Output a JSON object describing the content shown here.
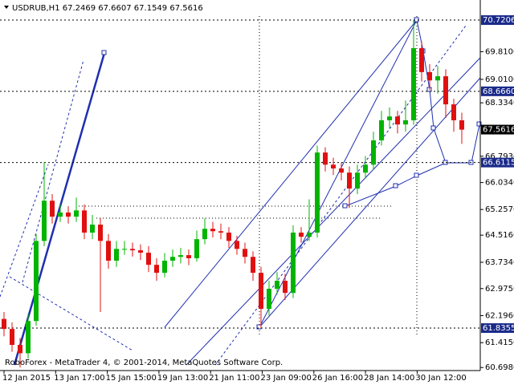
{
  "chart_data": {
    "type": "candlestick",
    "title": "USDRUB,H1  67.2469 67.6607 67.1549 67.5616",
    "footer": "RoboForex - MetaTrader 4, © 2001-2014, MetaQuotes Software Corp.",
    "x_labels": [
      "12 Jan 2015",
      "13 Jan 17:00",
      "15 Jan 15:00",
      "19 Jan 13:00",
      "21 Jan 11:00",
      "23 Jan 09:00",
      "26 Jan 16:00",
      "28 Jan 14:00",
      "30 Jan 12:00"
    ],
    "open": [
      62.1,
      61.81,
      61.35,
      61.11,
      62.04,
      64.35,
      65.51,
      65.05,
      65.17,
      65.05,
      65.23,
      64.59,
      64.82,
      64.35,
      63.78,
      64.12,
      64.12,
      64.08,
      64.01,
      63.66,
      63.43,
      63.78,
      63.89,
      63.94,
      63.85,
      64.4,
      64.7,
      64.63,
      64.59,
      64.35,
      64.12,
      63.89,
      63.43,
      62.39,
      62.97,
      63.2,
      62.85,
      64.59,
      64.47,
      64.59,
      66.9,
      66.55,
      66.44,
      66.32,
      65.86,
      66.32,
      66.55,
      67.25,
      67.83,
      67.94,
      67.71,
      67.83,
      69.91,
      69.22,
      68.98,
      69.1,
      68.29,
      67.83
    ],
    "high": [
      62.3,
      62.0,
      61.55,
      62.25,
      64.55,
      66.62,
      65.7,
      65.4,
      65.35,
      65.6,
      65.4,
      65.1,
      65.0,
      64.55,
      64.35,
      64.35,
      64.3,
      64.25,
      64.2,
      63.85,
      64.0,
      64.1,
      64.15,
      64.1,
      64.65,
      65.0,
      64.9,
      64.85,
      64.75,
      64.5,
      64.3,
      64.05,
      63.6,
      63.2,
      63.45,
      63.4,
      64.8,
      64.75,
      65.55,
      67.1,
      67.05,
      66.75,
      66.6,
      66.5,
      66.55,
      66.8,
      67.5,
      68.1,
      68.2,
      68.1,
      68.4,
      70.72,
      70.1,
      69.45,
      69.4,
      69.3,
      68.45,
      68.05
    ],
    "low": [
      61.6,
      61.15,
      60.7,
      60.95,
      61.9,
      64.2,
      64.85,
      64.9,
      64.85,
      64.9,
      64.4,
      64.4,
      62.3,
      63.55,
      63.6,
      63.95,
      63.9,
      63.8,
      63.45,
      63.2,
      63.3,
      63.6,
      63.7,
      63.65,
      63.75,
      64.25,
      64.45,
      64.4,
      64.15,
      63.95,
      63.7,
      63.2,
      61.84,
      62.2,
      62.8,
      62.65,
      62.7,
      64.3,
      64.35,
      64.45,
      66.35,
      66.25,
      66.1,
      65.3,
      65.7,
      66.15,
      66.4,
      67.1,
      67.6,
      67.45,
      67.5,
      67.7,
      68.95,
      68.7,
      68.6,
      67.9,
      67.5,
      67.15
    ],
    "close": [
      61.81,
      61.35,
      61.11,
      62.04,
      64.35,
      65.51,
      65.05,
      65.17,
      65.05,
      65.23,
      64.59,
      64.82,
      64.35,
      63.78,
      64.12,
      64.12,
      64.08,
      64.01,
      63.66,
      63.43,
      63.78,
      63.89,
      63.94,
      63.85,
      64.4,
      64.7,
      64.63,
      64.59,
      64.35,
      64.12,
      63.89,
      63.43,
      62.39,
      62.97,
      63.2,
      62.85,
      64.59,
      64.47,
      64.59,
      66.9,
      66.55,
      66.44,
      66.32,
      65.86,
      66.32,
      66.55,
      67.25,
      67.83,
      67.94,
      67.71,
      67.83,
      69.91,
      69.22,
      68.98,
      69.1,
      68.29,
      67.83,
      67.56
    ],
    "up_color": "#00b400",
    "down_color": "#e01010",
    "ylim": [
      60.61,
      71.3
    ],
    "yticks": [
      {
        "value": 69.81,
        "label": "69.8100"
      },
      {
        "value": 69.01,
        "label": "69.0100"
      },
      {
        "value": 68.334,
        "label": "68.3340"
      },
      {
        "value": 66.793,
        "label": "66.7930"
      },
      {
        "value": 66.034,
        "label": "66.0340"
      },
      {
        "value": 65.257,
        "label": "65.2570"
      },
      {
        "value": 64.516,
        "label": "64.5160"
      },
      {
        "value": 63.734,
        "label": "63.7340"
      },
      {
        "value": 62.975,
        "label": "62.9750"
      },
      {
        "value": 62.196,
        "label": "62.1960"
      },
      {
        "value": 61.415,
        "label": "61.4150"
      },
      {
        "value": 60.698,
        "label": "60.6980"
      }
    ],
    "levels": [
      70.7206,
      {
        "value": 68.666,
        "label": "68.6660"
      },
      66.6115,
      61.8355
    ],
    "level_color": "#1a2a8a",
    "current_price": 67.5616
  }
}
